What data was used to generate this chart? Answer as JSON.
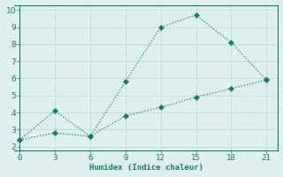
{
  "xlabel": "Humidex (Indice chaleur)",
  "x": [
    0,
    3,
    6,
    9,
    12,
    15,
    18,
    21
  ],
  "line1_y": [
    2.4,
    4.1,
    2.6,
    5.8,
    9.0,
    9.7,
    8.1,
    5.9
  ],
  "line2_y": [
    2.4,
    2.8,
    2.6,
    3.8,
    4.3,
    4.9,
    5.4,
    5.9
  ],
  "line_color": "#1a7a6e",
  "bg_color": "#ddf0ee",
  "grid_color": "#c0e0dc",
  "xlim": [
    -0.5,
    22
  ],
  "ylim": [
    1.8,
    10.3
  ],
  "xticks": [
    0,
    3,
    6,
    9,
    12,
    15,
    18,
    21
  ],
  "yticks": [
    2,
    3,
    4,
    5,
    6,
    7,
    8,
    9,
    10
  ],
  "markersize": 3,
  "linewidth": 0.9,
  "linestyle": ":"
}
